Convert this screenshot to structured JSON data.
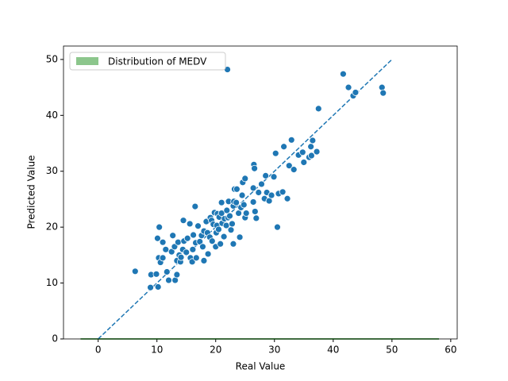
{
  "chart_data": {
    "type": "scatter",
    "x_label": "Real Value",
    "y_label": "Predicted Value",
    "xlim": [
      -5.9,
      61.1
    ],
    "ylim": [
      0,
      52.4
    ],
    "xticks": [
      0,
      10,
      20,
      30,
      40,
      50,
      60
    ],
    "yticks": [
      0,
      10,
      20,
      30,
      40,
      50
    ],
    "color": "#1f77b4",
    "legend": "upper left",
    "x": [
      6.3,
      8.9,
      9,
      9.9,
      10.2,
      10.3,
      10.1,
      10.4,
      10.6,
      11,
      11,
      11.5,
      11.7,
      12,
      12.5,
      12.7,
      13,
      13.1,
      13.4,
      13.4,
      13.6,
      13.8,
      14,
      14.1,
      14.4,
      14.5,
      14.6,
      15,
      15.2,
      15.6,
      15.7,
      16,
      16.1,
      16.2,
      16.5,
      16.6,
      16.7,
      17,
      17.3,
      17.6,
      17.8,
      18,
      18,
      18.4,
      18.6,
      18.7,
      19,
      19.1,
      19.3,
      19.4,
      19.6,
      19.8,
      20,
      20.1,
      20.2,
      20.3,
      20.5,
      20.6,
      20.8,
      21,
      21,
      21.1,
      21.4,
      21.5,
      21.8,
      21.9,
      22,
      22.1,
      22.2,
      22.4,
      22.6,
      22.8,
      23,
      23,
      23.1,
      23.2,
      23.5,
      23.6,
      23.9,
      24.1,
      24.3,
      24.5,
      24.6,
      24.8,
      25,
      25,
      25.2,
      26.4,
      26.5,
      26.6,
      26.4,
      26.7,
      26.9,
      27.3,
      27.8,
      28.3,
      28.5,
      28.7,
      29.1,
      29.5,
      29.9,
      30.5,
      30.7,
      31.4,
      31.6,
      32.2,
      32.5,
      32.9,
      33.3,
      34.1,
      34.8,
      35,
      35.9,
      36.2,
      36.5,
      37.2,
      37.5,
      41.7,
      42.6,
      43.4,
      43.8,
      48.3,
      48.5,
      36.3,
      30.2
    ],
    "y": [
      12.1,
      9.2,
      11.5,
      11.6,
      9.3,
      14.5,
      18,
      20,
      13.7,
      14.5,
      17.3,
      16,
      12,
      10.5,
      15.6,
      18.5,
      16.5,
      10.5,
      11.5,
      14,
      17.3,
      15,
      13.8,
      14.6,
      16,
      21.2,
      17.5,
      15.5,
      18,
      20.6,
      14.5,
      13.8,
      16,
      18.6,
      23.7,
      17.2,
      14.5,
      20.2,
      17.4,
      18.5,
      16.5,
      14,
      19.3,
      21,
      19,
      15.2,
      18.2,
      21.7,
      21.2,
      17.5,
      20.5,
      22.6,
      16.5,
      19,
      20.3,
      22.4,
      19.6,
      21.8,
      17,
      22.5,
      24.4,
      20.7,
      18.3,
      21.5,
      20.3,
      23,
      48.2,
      21.7,
      24.6,
      22,
      19.5,
      20.6,
      17,
      23.8,
      24.6,
      26.8,
      24.4,
      26.8,
      22.5,
      18.2,
      23.5,
      25.7,
      28,
      24,
      21.7,
      28.7,
      22.5,
      24.5,
      31.2,
      30.5,
      27,
      22.8,
      21.6,
      26.2,
      27.7,
      25.1,
      29.2,
      26.2,
      24.7,
      25.7,
      29,
      20,
      26,
      26.3,
      34.4,
      25.1,
      31,
      35.6,
      30.3,
      32.9,
      33.4,
      31.6,
      32.5,
      34.4,
      35.5,
      33.5,
      41.2,
      47.4,
      45,
      43.5,
      44.1,
      45,
      44,
      32.8,
      33.2
    ],
    "reference_line": {
      "x": [
        0,
        50
      ],
      "y": [
        0,
        50
      ],
      "color": "#1f77b4"
    },
    "distribution": {
      "name": "Distribution of MEDV",
      "color": "#008000",
      "x": [
        -3,
        58
      ],
      "y": [
        0,
        0
      ]
    }
  }
}
